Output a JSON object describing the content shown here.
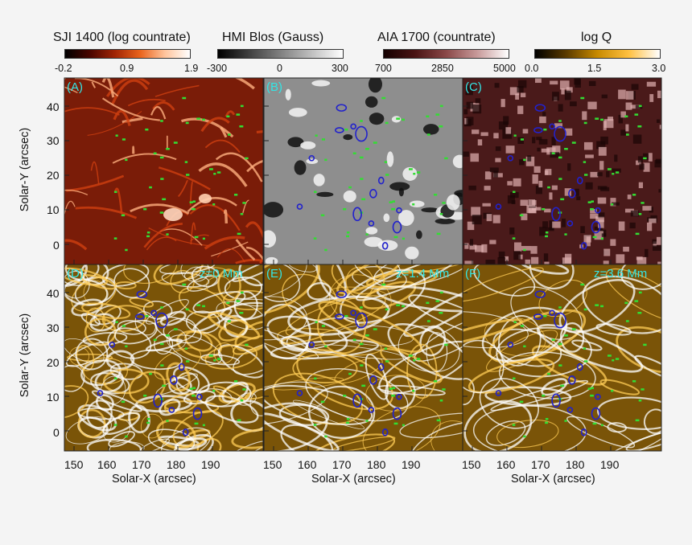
{
  "colorbars": [
    {
      "title": "SJI 1400 (log countrate)",
      "ticks": [
        "-0.2",
        "0.9",
        "1.9"
      ],
      "gradient": [
        "#000000",
        "#4a0500",
        "#a12505",
        "#e9631c",
        "#ffc49c",
        "#ffffff"
      ]
    },
    {
      "title": "HMI Blos (Gauss)",
      "ticks": [
        "-300",
        "0",
        "300"
      ],
      "gradient": [
        "#000000",
        "#808080",
        "#ffffff"
      ]
    },
    {
      "title": "AIA 1700 (countrate)",
      "ticks": [
        "700",
        "2850",
        "5000"
      ],
      "gradient": [
        "#140000",
        "#4a1414",
        "#8a4848",
        "#c89a9a",
        "#ffffff"
      ]
    },
    {
      "title": "log Q",
      "ticks": [
        "0.0",
        "1.5",
        "3.0"
      ],
      "gradient": [
        "#000000",
        "#5a3a00",
        "#c88a00",
        "#ffc040",
        "#ffffff"
      ]
    }
  ],
  "panels": [
    {
      "label": "(A)",
      "note": "",
      "bg": "#7a1c08"
    },
    {
      "label": "(B)",
      "note": "",
      "bg": "#8e8e8e"
    },
    {
      "label": "(C)",
      "note": "",
      "bg": "#4a1a1a"
    },
    {
      "label": "(D)",
      "note": "z=0 Mm",
      "bg": "#7a5408"
    },
    {
      "label": "(E)",
      "note": "z=1.4 Mm",
      "bg": "#7a5408"
    },
    {
      "label": "(F)",
      "note": "z=3.6 Mm",
      "bg": "#7a5408"
    }
  ],
  "axes": {
    "ylabel": "Solar-Y (arcsec)",
    "xlabel": "Solar-X (arcsec)",
    "yticks": [
      "40",
      "30",
      "20",
      "10",
      "0"
    ],
    "xticks": [
      "150",
      "160",
      "170",
      "180",
      "190"
    ]
  },
  "contour_colors": {
    "green": "#33dd33",
    "blue": "#2222cc"
  }
}
